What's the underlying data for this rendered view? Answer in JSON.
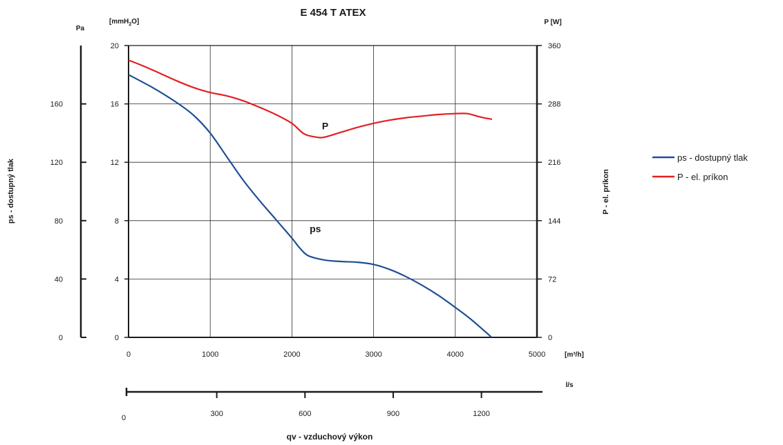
{
  "chart_data": {
    "type": "line",
    "title": "E 454 T ATEX",
    "x": {
      "unit": "[m³/h]",
      "range": [
        0,
        5000
      ],
      "ticks": [
        0,
        1000,
        2000,
        3000,
        4000,
        5000
      ]
    },
    "x2": {
      "unit": "l/s",
      "label": "qv - vzduchový výkon",
      "range": [
        0,
        1388.9
      ],
      "ticks": [
        0,
        300,
        600,
        900,
        1200
      ]
    },
    "y_left_pa": {
      "unit": "Pa",
      "label": "ps - dostupný tlak",
      "range": [
        0,
        200
      ],
      "ticks": [
        0,
        40,
        80,
        120,
        160
      ]
    },
    "y_left_mmh2o": {
      "unit_base": "[mmH",
      "unit_sub": "2",
      "unit_end": "O]",
      "range": [
        0,
        20
      ],
      "ticks": [
        0,
        4,
        8,
        12,
        16,
        20
      ]
    },
    "y_right": {
      "unit": "P [W]",
      "label": "P - el. príkon",
      "range": [
        0,
        360
      ],
      "ticks": [
        0,
        72,
        144,
        216,
        288,
        360
      ]
    },
    "series": [
      {
        "name": "ps - dostupný tlak",
        "axis": "left",
        "color": "#1f4e96",
        "curve_label": "ps",
        "curve_label_at": [
          2150,
          7.2
        ],
        "points": [
          [
            0,
            18
          ],
          [
            300,
            17.1
          ],
          [
            600,
            16.05
          ],
          [
            800,
            15.2
          ],
          [
            1000,
            14
          ],
          [
            1200,
            12.4
          ],
          [
            1400,
            10.8
          ],
          [
            1600,
            9.4
          ],
          [
            1800,
            8.1
          ],
          [
            2000,
            6.8
          ],
          [
            2100,
            6.1
          ],
          [
            2200,
            5.6
          ],
          [
            2400,
            5.3
          ],
          [
            2600,
            5.2
          ],
          [
            2800,
            5.15
          ],
          [
            3000,
            5
          ],
          [
            3200,
            4.65
          ],
          [
            3400,
            4.15
          ],
          [
            3600,
            3.55
          ],
          [
            3800,
            2.85
          ],
          [
            4000,
            2.05
          ],
          [
            4200,
            1.2
          ],
          [
            4445,
            0
          ]
        ]
      },
      {
        "name": "P - el. príkon",
        "axis": "right",
        "color": "#e31e24",
        "curve_label": "P",
        "curve_label_at": [
          2300,
          255
        ],
        "points": [
          [
            0,
            342
          ],
          [
            200,
            334
          ],
          [
            400,
            325
          ],
          [
            600,
            316
          ],
          [
            800,
            308
          ],
          [
            1000,
            302
          ],
          [
            1200,
            298
          ],
          [
            1400,
            292
          ],
          [
            1600,
            284
          ],
          [
            1800,
            275
          ],
          [
            2000,
            264
          ],
          [
            2150,
            251
          ],
          [
            2300,
            247
          ],
          [
            2400,
            247
          ],
          [
            2600,
            253
          ],
          [
            2800,
            259
          ],
          [
            3000,
            264
          ],
          [
            3200,
            268
          ],
          [
            3400,
            271
          ],
          [
            3600,
            273
          ],
          [
            3800,
            275
          ],
          [
            4000,
            276
          ],
          [
            4150,
            276
          ],
          [
            4300,
            272
          ],
          [
            4450,
            269
          ]
        ]
      }
    ],
    "legend": {
      "position": "right",
      "entries": [
        "ps - dostupný tlak",
        "P - el. príkon"
      ]
    },
    "grid": true
  }
}
